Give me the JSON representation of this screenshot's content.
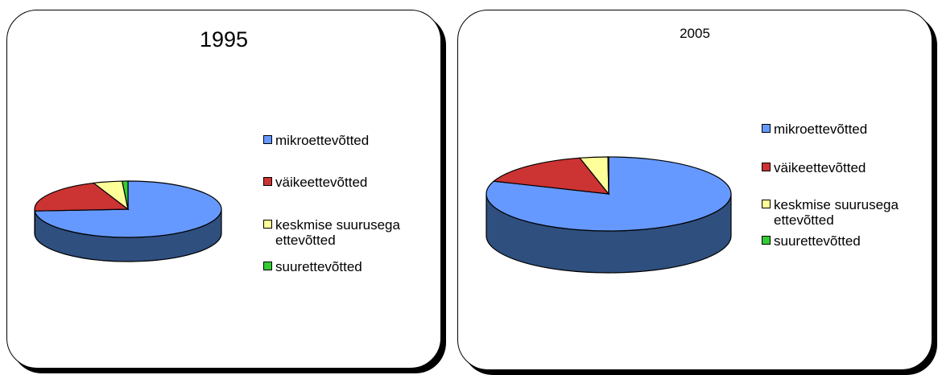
{
  "chart_data": [
    {
      "type": "pie",
      "title": "1995",
      "categories": [
        "mikroettevõtted",
        "väikeettevõtted",
        "keskmise suurusega ettevõtted",
        "suurettevõtted"
      ],
      "values": [
        74,
        20,
        5,
        1
      ],
      "colors": [
        "#6699ff",
        "#cc3333",
        "#ffff99",
        "#33cc33"
      ],
      "three_d": true,
      "legend_position": "right"
    },
    {
      "type": "pie",
      "title": "2005",
      "categories": [
        "mikroettevõtted",
        "väikeettevõtted",
        "keskmise suurusega ettevõtted",
        "suurettevõtted"
      ],
      "values": [
        80.6,
        15.6,
        3.7,
        0.1
      ],
      "colors": [
        "#6699ff",
        "#cc3333",
        "#ffff99",
        "#33cc33"
      ],
      "three_d": true,
      "legend_position": "right"
    }
  ],
  "legend": {
    "items": [
      {
        "label": "mikroettevõtted",
        "color": "#6699ff"
      },
      {
        "label": "väikeettevõtted",
        "color": "#cc3333"
      },
      {
        "label": "keskmise suurusega\nettevõtted",
        "color": "#ffff99"
      },
      {
        "label": "suurettevõtted",
        "color": "#33cc33"
      }
    ]
  }
}
